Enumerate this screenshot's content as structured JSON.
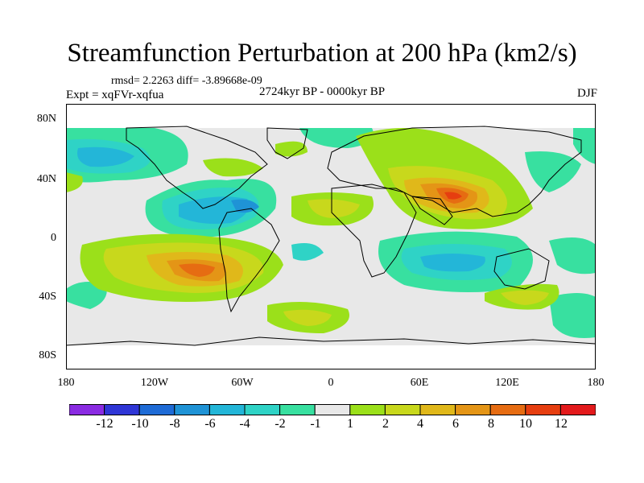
{
  "title": "Streamfunction Perturbation at 200 hPa (km2/s)",
  "stats": "rmsd= 2.2263  diff= -3.89668e-09",
  "experiment": "Expt = xqFVr-xqfua",
  "period": "2724kyr BP - 0000kyr BP",
  "season": "DJF",
  "map": {
    "lat_labels": [
      "80N",
      "40N",
      "0",
      "40S",
      "80S"
    ],
    "lon_labels": [
      "180",
      "120W",
      "60W",
      "0",
      "60E",
      "120E",
      "180"
    ],
    "background_color": "#e8e8e8"
  },
  "colorbar": {
    "labels": [
      "-12",
      "-10",
      "-8",
      "-6",
      "-4",
      "-2",
      "-1",
      "1",
      "2",
      "4",
      "6",
      "8",
      "10",
      "12"
    ],
    "colors": [
      "#8a2be2",
      "#2f36d6",
      "#1e6bd6",
      "#1f93d6",
      "#23b6d8",
      "#2fd3c6",
      "#38e0a0",
      "#e8e8e8",
      "#9be01a",
      "#c8d81c",
      "#e0b81a",
      "#e49516",
      "#e66c12",
      "#e63e10",
      "#e31a1c"
    ]
  }
}
